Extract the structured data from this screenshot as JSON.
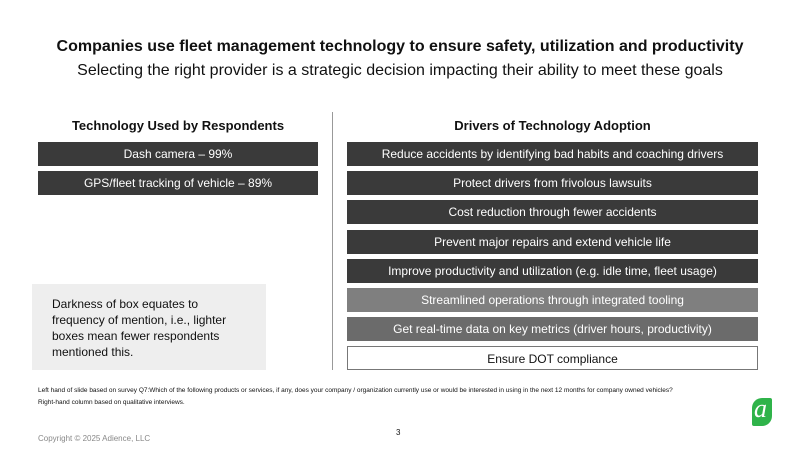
{
  "header": {
    "title": "Companies use fleet management technology to ensure safety, utilization and productivity",
    "subtitle": "Selecting the right provider is a strategic decision impacting their ability to meet these goals"
  },
  "left": {
    "heading": "Technology Used by Respondents",
    "items": [
      {
        "text": "Dash camera – 99%",
        "color": "#3a3a3a"
      },
      {
        "text": "GPS/fleet tracking of vehicle – 89%",
        "color": "#3a3a3a"
      }
    ],
    "note": "Darkness of box equates to frequency of mention, i.e., lighter boxes mean fewer respondents mentioned this."
  },
  "right": {
    "heading": "Drivers of Technology Adoption",
    "items": [
      {
        "text": "Reduce accidents by identifying bad habits and coaching drivers",
        "color": "#3a3a3a"
      },
      {
        "text": "Protect drivers from frivolous lawsuits",
        "color": "#3a3a3a"
      },
      {
        "text": "Cost reduction through fewer accidents",
        "color": "#3a3a3a"
      },
      {
        "text": "Prevent major repairs and extend vehicle life",
        "color": "#3a3a3a"
      },
      {
        "text": "Improve productivity and utilization (e.g. idle time, fleet usage)",
        "color": "#3a3a3a"
      },
      {
        "text": "Streamlined operations through integrated tooling",
        "color": "#7f7f7f"
      },
      {
        "text": "Get real-time data on key metrics (driver hours, productivity)",
        "color": "#6b6b6b"
      },
      {
        "text": "Ensure DOT compliance",
        "color": "#ffffff"
      }
    ]
  },
  "footnotes": [
    "Left hand of slide based on survey Q7:Which of the following products or services, if any, does your company / organization currently use or would be interested in using in the next 12 months for company owned vehicles?",
    "Right-hand column based on qualitative interviews."
  ],
  "footer": {
    "copyright": "Copyright © 2025 Adience, LLC",
    "page": "3",
    "logo": "a"
  }
}
